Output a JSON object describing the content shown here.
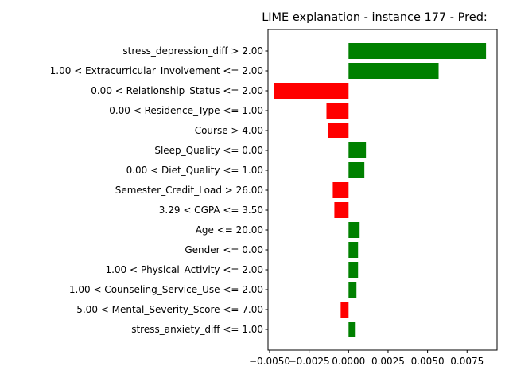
{
  "chart_data": {
    "type": "bar",
    "orientation": "horizontal",
    "title": "LIME explanation - instance 177 - Pred:",
    "xlabel": "",
    "ylabel": "",
    "xlim": [
      -0.0051,
      0.0094
    ],
    "grid": false,
    "colors": {
      "positive": "#008000",
      "negative": "#ff0000"
    },
    "x_ticks": [
      {
        "value": -0.005,
        "label": "−0.0050"
      },
      {
        "value": -0.0025,
        "label": "−0.0025"
      },
      {
        "value": 0.0,
        "label": "0.0000"
      },
      {
        "value": 0.0025,
        "label": "0.0025"
      },
      {
        "value": 0.005,
        "label": "0.0050"
      },
      {
        "value": 0.0075,
        "label": "0.0075"
      }
    ],
    "categories": [
      "stress_depression_diff > 2.00",
      "1.00 < Extracurricular_Involvement <= 2.00",
      "0.00 < Relationship_Status <= 2.00",
      "0.00 < Residence_Type <= 1.00",
      "Course > 4.00",
      "Sleep_Quality <= 0.00",
      "0.00 < Diet_Quality <= 1.00",
      "Semester_Credit_Load > 26.00",
      "3.29 < CGPA <= 3.50",
      "Age <= 20.00",
      "Gender <= 0.00",
      "1.00 < Physical_Activity <= 2.00",
      "1.00 < Counseling_Service_Use <= 2.00",
      "5.00 < Mental_Severity_Score <= 7.00",
      "stress_anxiety_diff <= 1.00"
    ],
    "values": [
      0.0087,
      0.0057,
      -0.0047,
      -0.0014,
      -0.0013,
      0.0011,
      0.001,
      -0.001,
      -0.0009,
      0.0007,
      0.0006,
      0.0006,
      0.0005,
      -0.0005,
      0.0004
    ]
  }
}
